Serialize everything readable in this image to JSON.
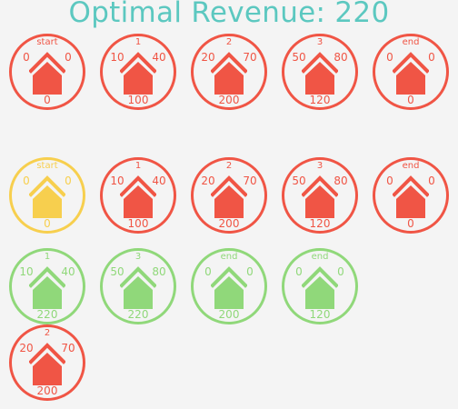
{
  "title": "Optimal Revenue: 220",
  "colors": {
    "red": "#f05545",
    "yellow": "#f7cf4e",
    "green": "#90d87a",
    "title": "#5cc8c0"
  },
  "rows": [
    [
      {
        "label": "start",
        "a": "0",
        "b": "0",
        "value": "0",
        "state": "red"
      },
      {
        "label": "1",
        "a": "10",
        "b": "40",
        "value": "100",
        "state": "red"
      },
      {
        "label": "2",
        "a": "20",
        "b": "70",
        "value": "200",
        "state": "red"
      },
      {
        "label": "3",
        "a": "50",
        "b": "80",
        "value": "120",
        "state": "red"
      },
      {
        "label": "end",
        "a": "0",
        "b": "0",
        "value": "0",
        "state": "red"
      }
    ],
    [
      {
        "label": "start",
        "a": "0",
        "b": "0",
        "value": "0",
        "state": "yellow"
      },
      {
        "label": "1",
        "a": "10",
        "b": "40",
        "value": "100",
        "state": "red"
      },
      {
        "label": "2",
        "a": "20",
        "b": "70",
        "value": "200",
        "state": "red"
      },
      {
        "label": "3",
        "a": "50",
        "b": "80",
        "value": "120",
        "state": "red"
      },
      {
        "label": "end",
        "a": "0",
        "b": "0",
        "value": "0",
        "state": "red"
      }
    ],
    [
      {
        "label": "1",
        "a": "10",
        "b": "40",
        "value": "220",
        "state": "green"
      },
      {
        "label": "3",
        "a": "50",
        "b": "80",
        "value": "220",
        "state": "green"
      },
      {
        "label": "end",
        "a": "0",
        "b": "0",
        "value": "200",
        "state": "green"
      },
      {
        "label": "end",
        "a": "0",
        "b": "0",
        "value": "120",
        "state": "green"
      }
    ],
    [
      {
        "label": "2",
        "a": "20",
        "b": "70",
        "value": "200",
        "state": "red"
      }
    ]
  ]
}
